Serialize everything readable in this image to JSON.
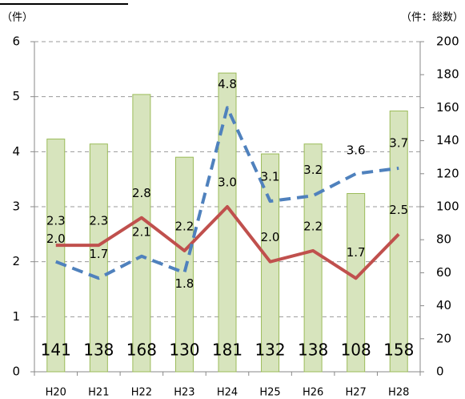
{
  "chart_data": {
    "type": "bar_line",
    "y_label": "（件）",
    "y2_label": "（件：総数）",
    "categories": [
      "H20",
      "H21",
      "H22",
      "H23",
      "H24",
      "H25",
      "H26",
      "H27",
      "H28"
    ],
    "series": [
      {
        "type": "bar",
        "axis": "y2",
        "color": "#d7e4bd",
        "edge_color": "#9bbb59",
        "values": [
          141,
          138,
          168,
          130,
          181,
          132,
          138,
          108,
          158
        ]
      },
      {
        "type": "line",
        "axis": "y",
        "color": "#c0504d",
        "dashed": false,
        "values": [
          2.3,
          2.3,
          2.8,
          2.2,
          3.0,
          2.0,
          2.2,
          1.7,
          2.5
        ],
        "value_labels": [
          "2.3",
          "2.3",
          "2.8",
          "2.2",
          "3.0",
          "2.0",
          "2.2",
          "1.7",
          "2.5"
        ]
      },
      {
        "type": "line",
        "axis": "y",
        "color": "#4f81bd",
        "dashed": true,
        "values": [
          2.0,
          1.7,
          2.1,
          1.8,
          4.8,
          3.1,
          3.2,
          3.6,
          3.7
        ],
        "value_labels": [
          "2.0",
          "1.7",
          "2.1",
          "1.8",
          "4.8",
          "3.1",
          "3.2",
          "3.6",
          "3.7"
        ]
      }
    ],
    "ylim": [
      0,
      6
    ],
    "yticks": [
      0,
      1,
      2,
      3,
      4,
      5,
      6
    ],
    "y2lim": [
      0,
      200
    ],
    "y2ticks": [
      0,
      20,
      40,
      60,
      80,
      100,
      120,
      140,
      160,
      180,
      200
    ],
    "grid": true
  }
}
